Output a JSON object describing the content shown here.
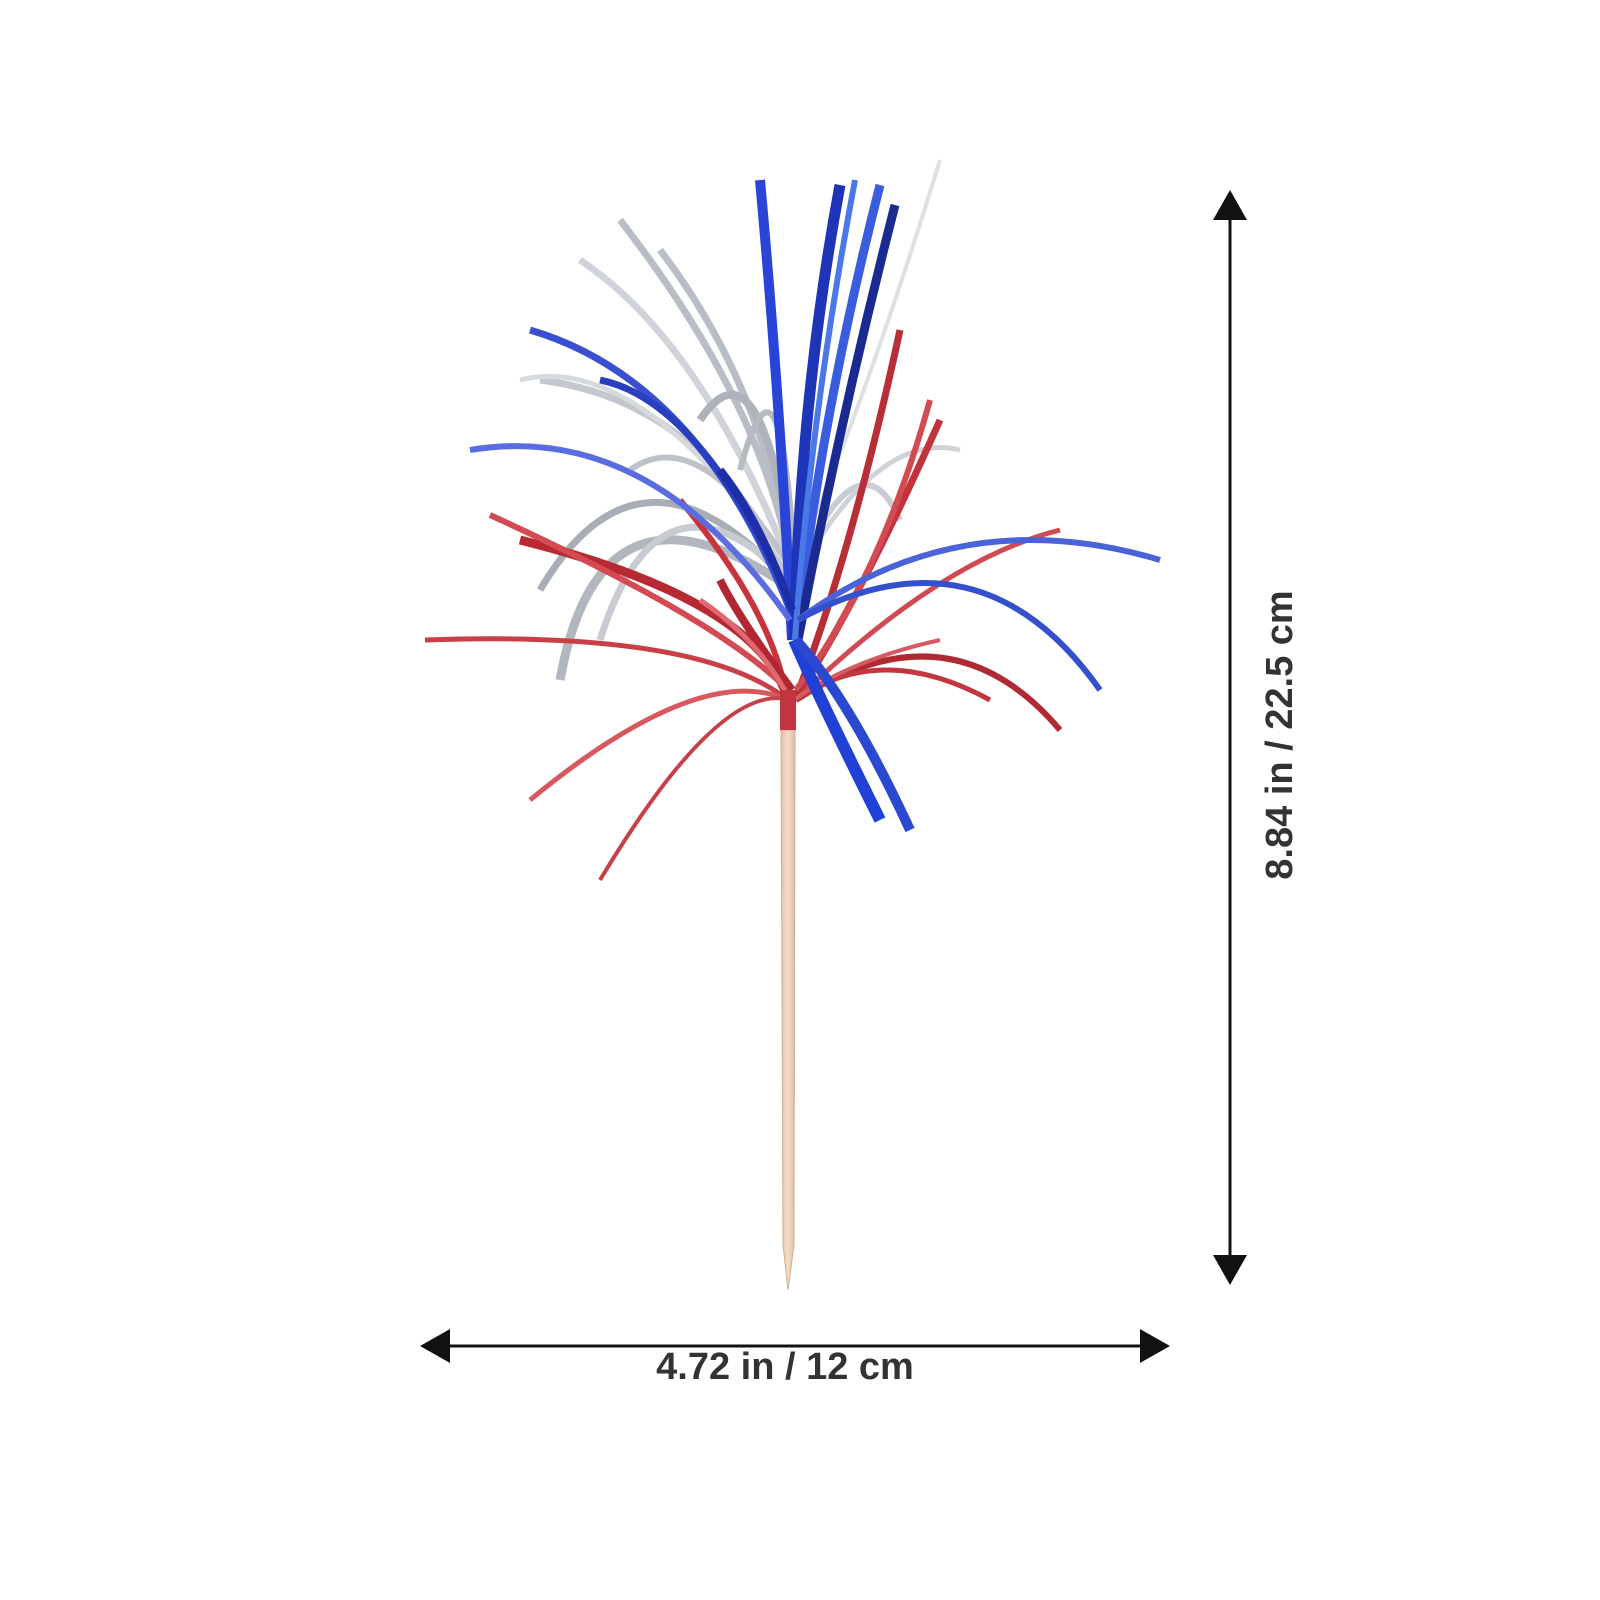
{
  "product": {
    "image": "fireworks-tinsel-cupcake-pick",
    "colors": {
      "red": "#c8343c",
      "blue": "#2c47c8",
      "silver": "#b9bec6",
      "stick": "#ecd2bd",
      "dimension_line": "#111111",
      "label_text": "#333333"
    }
  },
  "dimensions": {
    "width_label": "4.72 in / 12 cm",
    "height_label": "8.84 in / 22.5 cm"
  }
}
